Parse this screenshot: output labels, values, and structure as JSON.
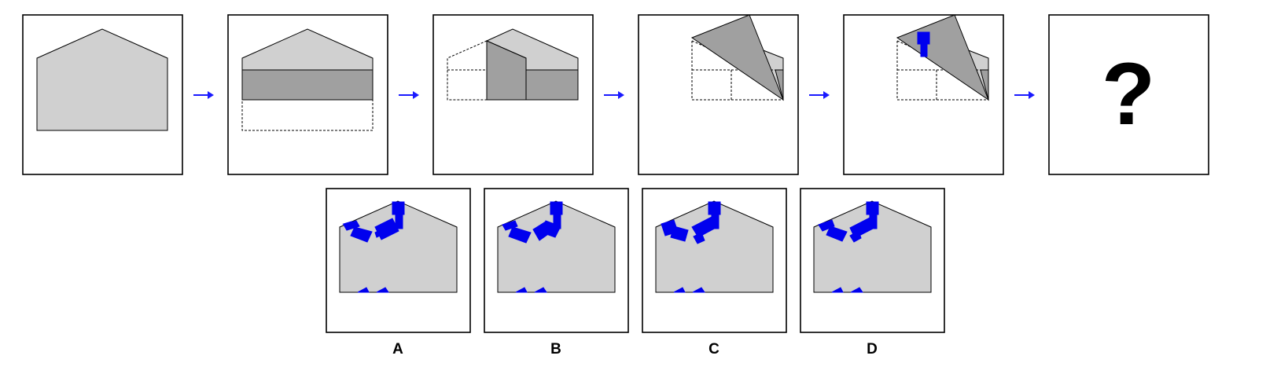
{
  "question_mark": "?",
  "options": [
    {
      "label": "A"
    },
    {
      "label": "B"
    },
    {
      "label": "C"
    },
    {
      "label": "D"
    }
  ],
  "colors": {
    "paper": "#d0d0d0",
    "fold": "#a0a0a0",
    "punch": "#0000ee",
    "arrow": "#1a1aff"
  }
}
